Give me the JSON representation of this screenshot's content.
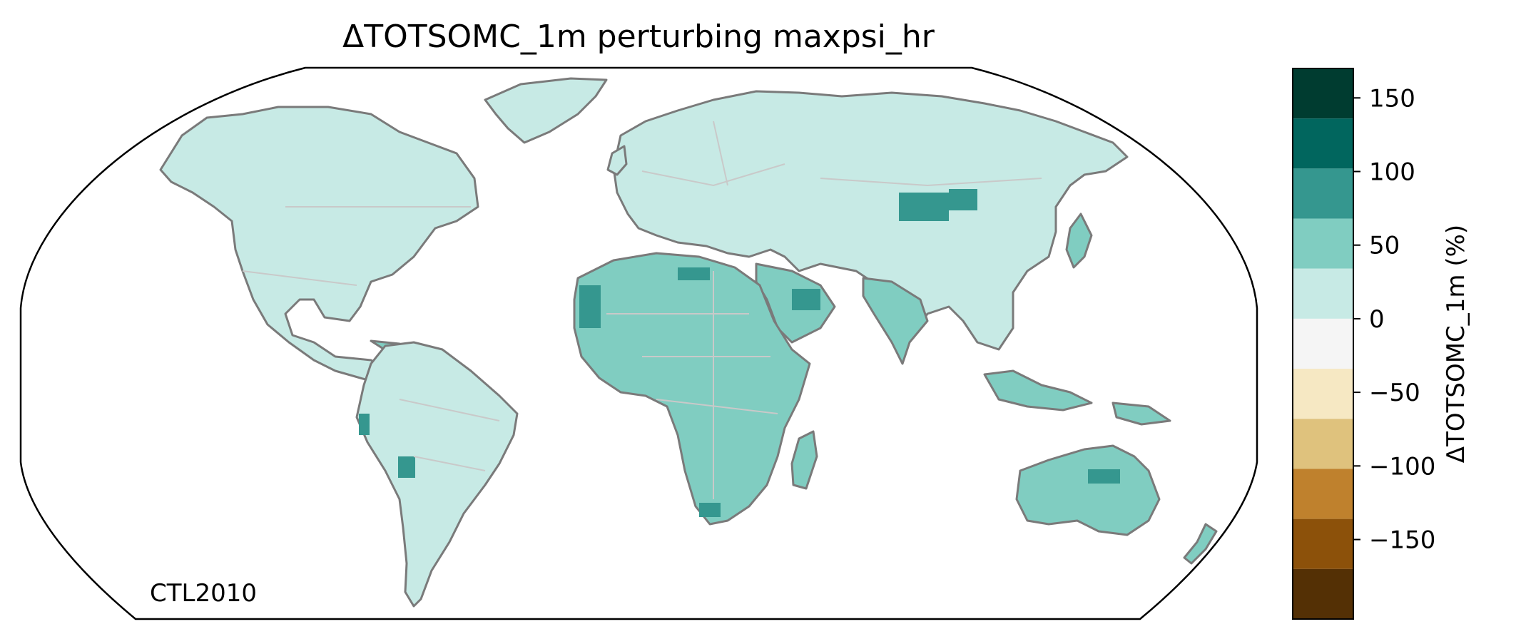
{
  "title": "ΔTOTSOMC_1m perturbing maxpsi_hr",
  "annotation": "CTL2010",
  "colorbar": {
    "label": "ΔTOTSOMC_1m (%)",
    "range": [
      -170,
      170
    ],
    "ticks": [
      {
        "value": 150,
        "label": "150"
      },
      {
        "value": 100,
        "label": "100"
      },
      {
        "value": 50,
        "label": "50"
      },
      {
        "value": 0,
        "label": "0"
      },
      {
        "value": -50,
        "label": "−50"
      },
      {
        "value": -100,
        "label": "−100"
      },
      {
        "value": -150,
        "label": "−150"
      }
    ],
    "bins": [
      {
        "min": 136,
        "max": 170,
        "color": "#003c30"
      },
      {
        "min": 102,
        "max": 136,
        "color": "#01665e"
      },
      {
        "min": 68,
        "max": 102,
        "color": "#35978f"
      },
      {
        "min": 34,
        "max": 68,
        "color": "#80cdc1"
      },
      {
        "min": 0,
        "max": 34,
        "color": "#c7eae5"
      },
      {
        "min": -34,
        "max": 0,
        "color": "#f5f5f5"
      },
      {
        "min": -68,
        "max": -34,
        "color": "#f6e8c3"
      },
      {
        "min": -102,
        "max": -68,
        "color": "#dfc27d"
      },
      {
        "min": -136,
        "max": -102,
        "color": "#bf812d"
      },
      {
        "min": -170,
        "max": -136,
        "color": "#8c510a"
      },
      {
        "min": -204,
        "max": -170,
        "color": "#543005"
      }
    ]
  },
  "map": {
    "projection": "robinson",
    "continents": [
      {
        "name": "north-america",
        "color": "#c7eae5"
      },
      {
        "name": "greenland",
        "color": "#c7eae5"
      },
      {
        "name": "south-america",
        "color": "#c7eae5"
      },
      {
        "name": "europe-asia",
        "color": "#c7eae5"
      },
      {
        "name": "africa",
        "color": "#80cdc1"
      },
      {
        "name": "arabia",
        "color": "#80cdc1"
      },
      {
        "name": "india",
        "color": "#80cdc1"
      },
      {
        "name": "australia",
        "color": "#80cdc1"
      },
      {
        "name": "madagascar",
        "color": "#80cdc1"
      },
      {
        "name": "japan",
        "color": "#80cdc1"
      },
      {
        "name": "indonesia",
        "color": "#80cdc1"
      },
      {
        "name": "new-guinea",
        "color": "#80cdc1"
      },
      {
        "name": "new-zealand",
        "color": "#80cdc1"
      },
      {
        "name": "uk",
        "color": "#c7eae5"
      },
      {
        "name": "cuba",
        "color": "#80cdc1"
      }
    ]
  }
}
